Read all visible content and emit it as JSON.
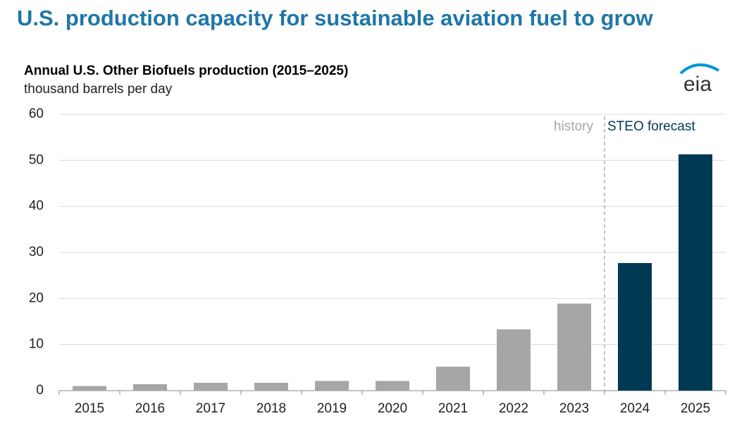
{
  "chart_data": {
    "type": "bar",
    "title": "U.S. production capacity for sustainable aviation fuel to grow",
    "subtitle": "Annual U.S. Other Biofuels production (2015–2025)",
    "y_label": "thousand barrels per day",
    "logo": "eia",
    "categories": [
      "2015",
      "2016",
      "2017",
      "2018",
      "2019",
      "2020",
      "2021",
      "2022",
      "2023",
      "2024",
      "2025"
    ],
    "values": [
      1.0,
      1.4,
      1.7,
      1.7,
      2.1,
      2.1,
      5.2,
      13.3,
      18.9,
      27.7,
      51.3
    ],
    "colors": [
      "#a6a6a6",
      "#a6a6a6",
      "#a6a6a6",
      "#a6a6a6",
      "#a6a6a6",
      "#a6a6a6",
      "#a6a6a6",
      "#a6a6a6",
      "#a6a6a6",
      "#003953",
      "#003953"
    ],
    "annotations": [
      "history",
      "STEO forecast"
    ],
    "ylim": [
      0,
      60
    ],
    "yticks": [
      0,
      10,
      20,
      30,
      40,
      50,
      60
    ],
    "grid": true
  }
}
